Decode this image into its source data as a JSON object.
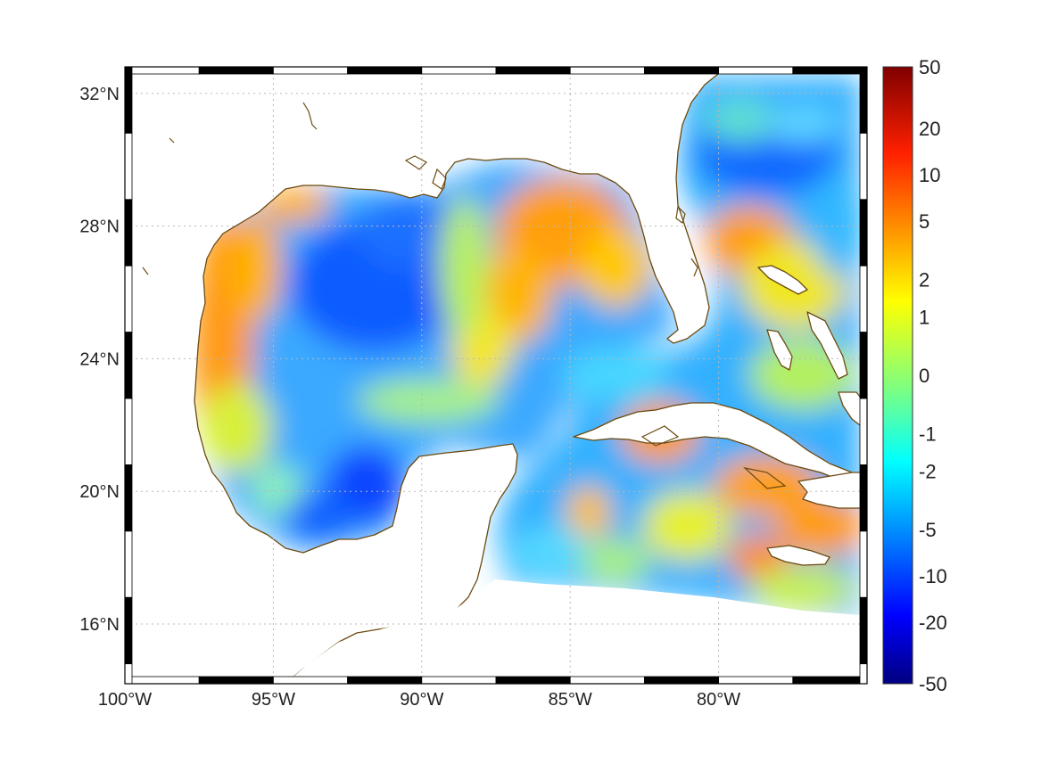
{
  "map": {
    "extent": {
      "lon": [
        -100,
        -75
      ],
      "lat": [
        14.2,
        32.8
      ]
    },
    "lat_ticks": [
      {
        "value": 32,
        "label": "32°N"
      },
      {
        "value": 28,
        "label": "28°N"
      },
      {
        "value": 24,
        "label": "24°N"
      },
      {
        "value": 20,
        "label": "20°N"
      },
      {
        "value": 16,
        "label": "16°N"
      }
    ],
    "lon_ticks": [
      {
        "value": -100,
        "label": "100°W"
      },
      {
        "value": -95,
        "label": "95°W"
      },
      {
        "value": -90,
        "label": "90°W"
      },
      {
        "value": -85,
        "label": "85°W"
      },
      {
        "value": -80,
        "label": "80°W"
      }
    ],
    "grid": "dotted",
    "frame": "black-white checkered border",
    "land_color": "#ffffff",
    "coastline_color": "#6b4a10",
    "colormap": "jet"
  },
  "colorbar": {
    "labels": [
      "50",
      "20",
      "10",
      "5",
      "2",
      "1",
      "0",
      "-1",
      "-2",
      "-5",
      "-10",
      "-20",
      "-50"
    ],
    "colors": [
      "#800000",
      "#d00000",
      "#ff2000",
      "#ff6000",
      "#ffa000",
      "#ffe000",
      "#c0ff40",
      "#40ffc0",
      "#00e0ff",
      "#0090ff",
      "#0040ff",
      "#0000d0",
      "#000080"
    ]
  }
}
